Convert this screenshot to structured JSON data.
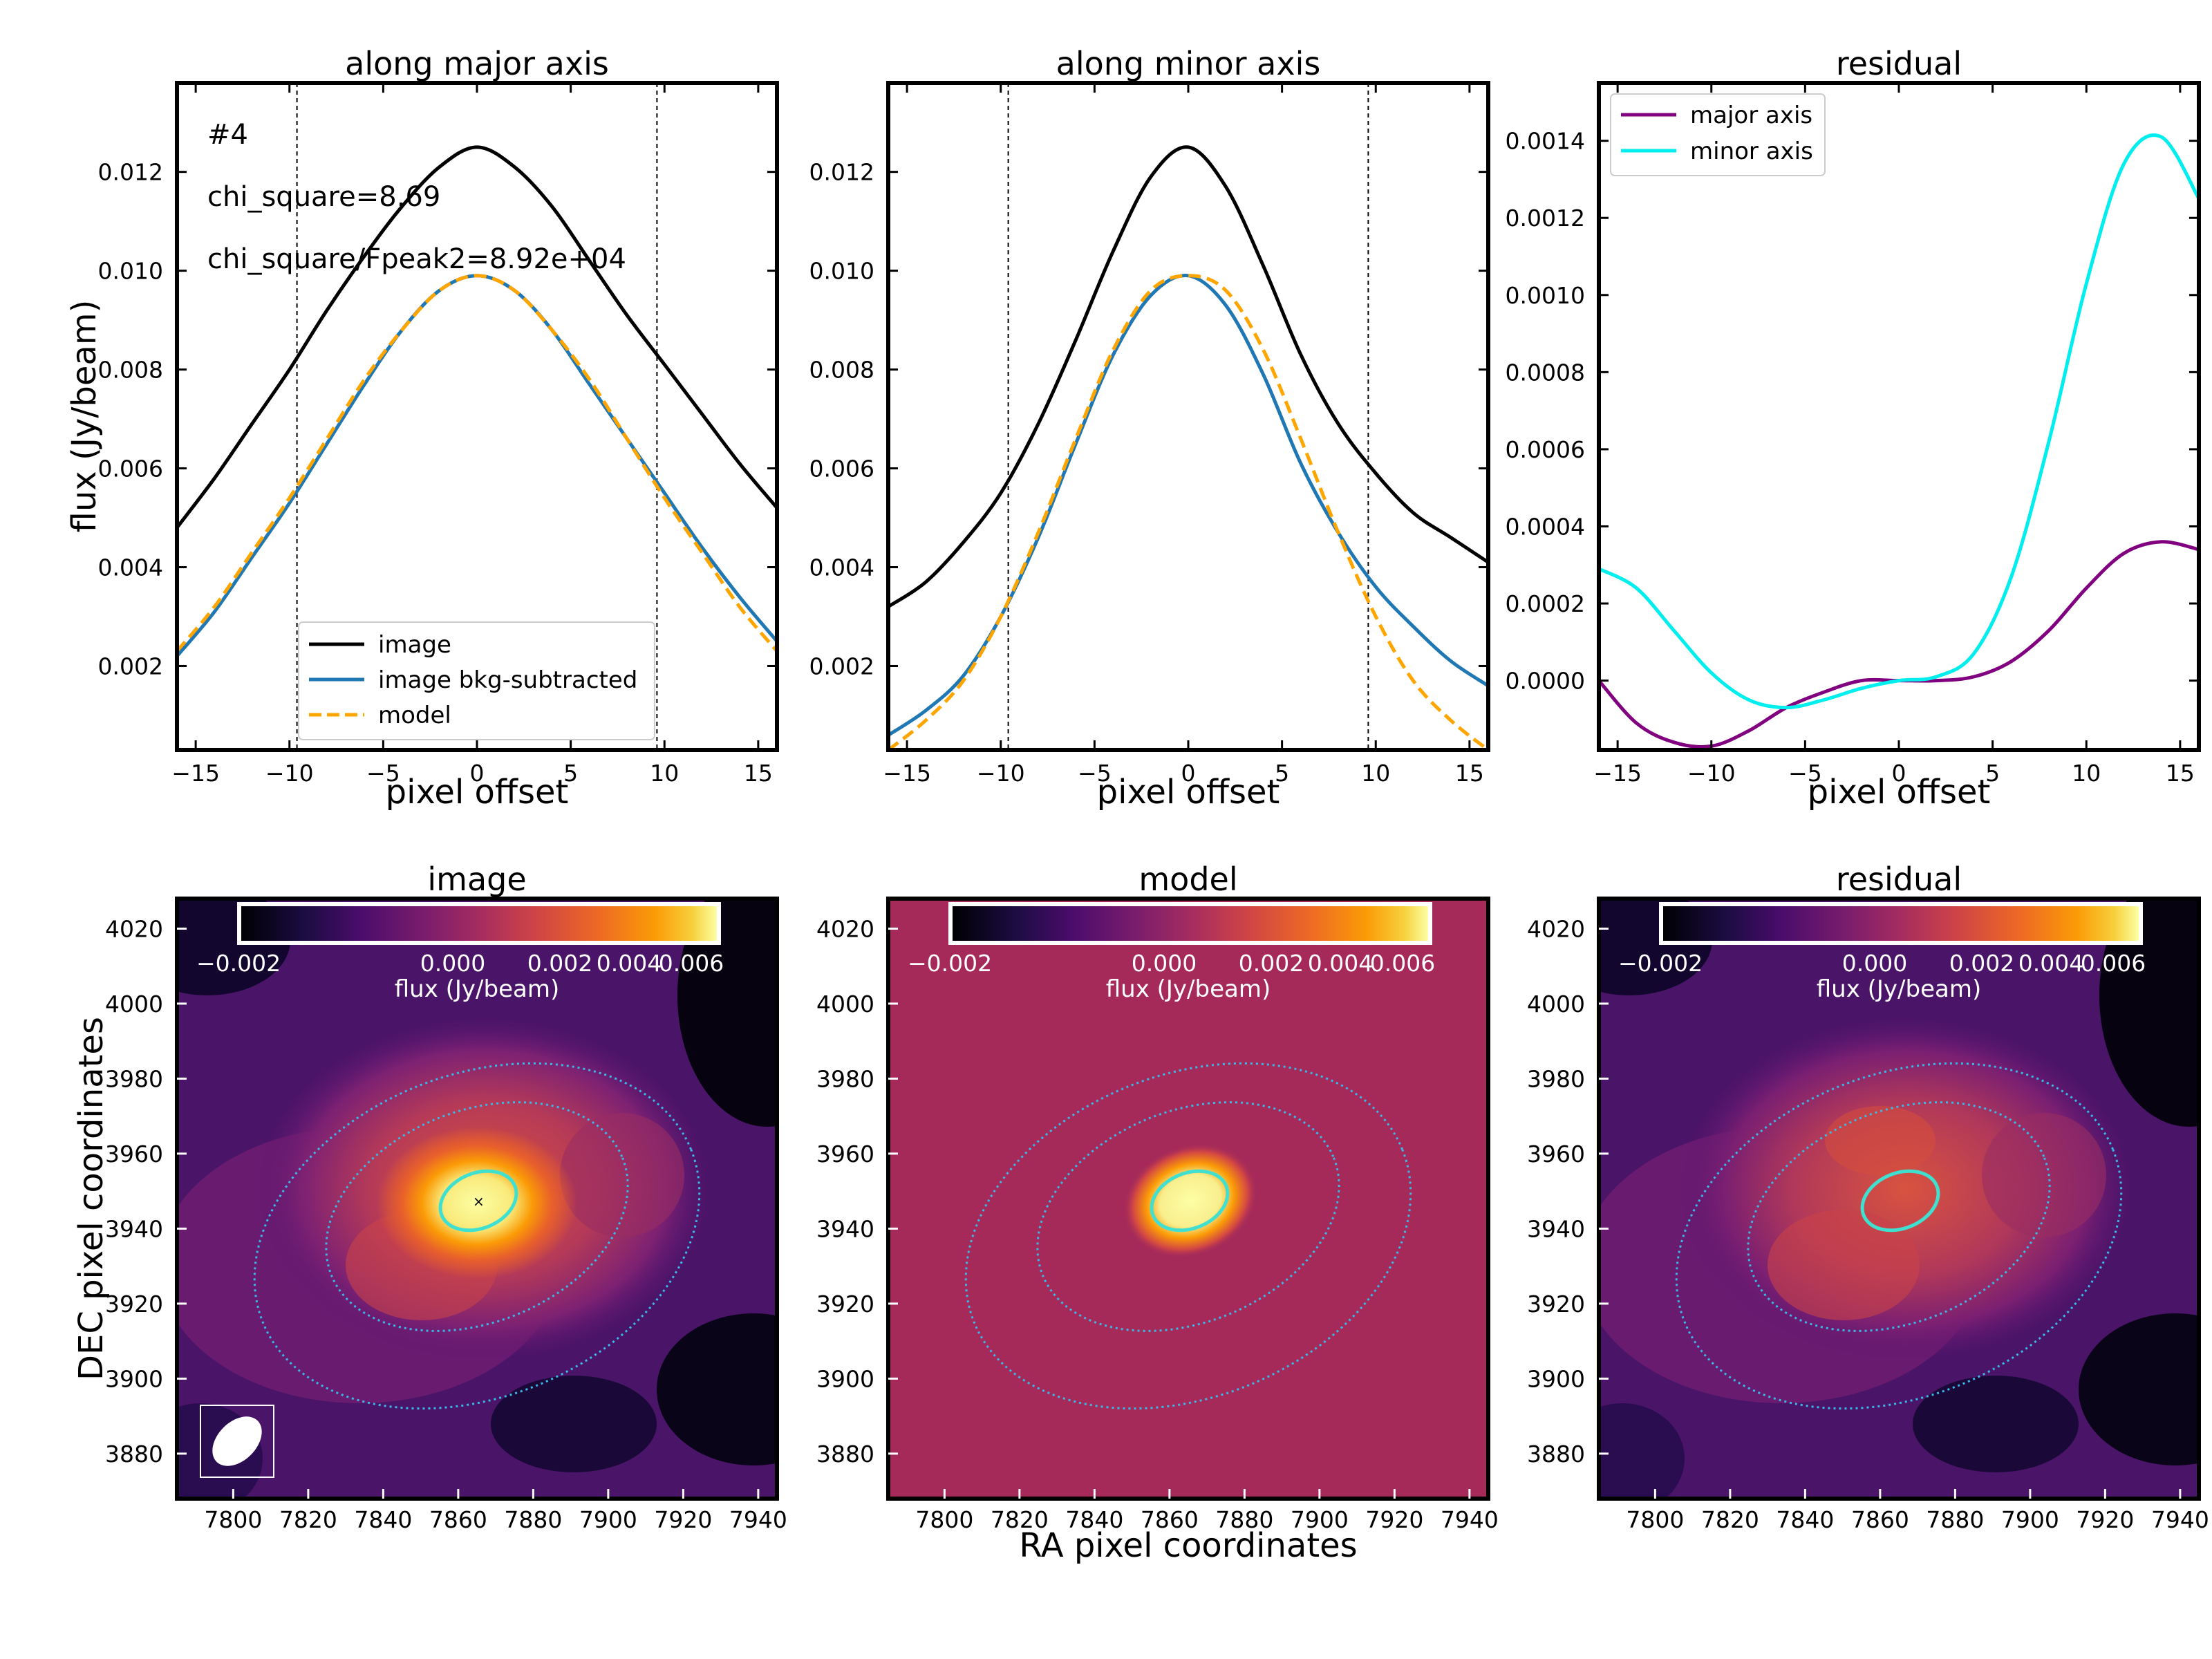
{
  "figure": {
    "top_row_xlabel": "pixel offset",
    "top_row_ylabel": "flux (Jy/beam)",
    "bottom_row_xlabel": "RA pixel coordinates",
    "bottom_row_ylabel": "DEC pixel coordinates"
  },
  "chart_data": [
    {
      "type": "line",
      "title": "along major axis",
      "xlabel": "pixel offset",
      "ylabel": "flux (Jy/beam)",
      "xlim": [
        -16,
        16
      ],
      "ylim": [
        0.0003,
        0.0138
      ],
      "xticks": [
        -15,
        -10,
        -5,
        0,
        5,
        10,
        15
      ],
      "xtick_labels": [
        "−15",
        "−10",
        "−5",
        "0",
        "5",
        "10",
        "15"
      ],
      "yticks": [
        0.002,
        0.004,
        0.006,
        0.008,
        0.01,
        0.012
      ],
      "ytick_labels": [
        "0.002",
        "0.004",
        "0.006",
        "0.008",
        "0.010",
        "0.012"
      ],
      "vlines": [
        -9.6,
        9.6
      ],
      "annotations": [
        "#4",
        "chi_square=8.69",
        "chi_square/Fpeak2=8.92e+04"
      ],
      "legend_position": "lower center",
      "x": [
        -16,
        -14,
        -12,
        -10,
        -8,
        -6,
        -4,
        -2,
        0,
        2,
        4,
        6,
        8,
        10,
        12,
        14,
        16
      ],
      "series": [
        {
          "name": "image",
          "color": "#000000",
          "style": "solid",
          "values": [
            0.0048,
            0.0058,
            0.0069,
            0.008,
            0.0092,
            0.0103,
            0.0113,
            0.0121,
            0.0125,
            0.0121,
            0.0113,
            0.0102,
            0.0091,
            0.0081,
            0.0071,
            0.0061,
            0.0052
          ]
        },
        {
          "name": "image bkg-subtracted",
          "color": "#1f77b4",
          "style": "solid",
          "values": [
            0.0022,
            0.0031,
            0.0042,
            0.0053,
            0.0065,
            0.0077,
            0.0088,
            0.0096,
            0.0099,
            0.0096,
            0.0088,
            0.0077,
            0.0066,
            0.0055,
            0.0044,
            0.0034,
            0.0025
          ]
        },
        {
          "name": "model",
          "color": "#ffa500",
          "style": "dashed",
          "values": [
            0.0023,
            0.0032,
            0.0043,
            0.0054,
            0.0066,
            0.0078,
            0.0088,
            0.0096,
            0.0099,
            0.0096,
            0.0088,
            0.0078,
            0.0066,
            0.0054,
            0.0043,
            0.0032,
            0.0023
          ]
        }
      ]
    },
    {
      "type": "line",
      "title": "along minor axis",
      "xlabel": "pixel offset",
      "ylabel": "",
      "xlim": [
        -16,
        16
      ],
      "ylim": [
        0.0003,
        0.0138
      ],
      "xticks": [
        -15,
        -10,
        -5,
        0,
        5,
        10,
        15
      ],
      "xtick_labels": [
        "−15",
        "−10",
        "−5",
        "0",
        "5",
        "10",
        "15"
      ],
      "yticks": [
        0.002,
        0.004,
        0.006,
        0.008,
        0.01,
        0.012
      ],
      "ytick_labels": [
        "0.002",
        "0.004",
        "0.006",
        "0.008",
        "0.010",
        "0.012"
      ],
      "vlines": [
        -9.6,
        9.6
      ],
      "x": [
        -16,
        -14,
        -12,
        -10,
        -8,
        -6,
        -4,
        -2,
        0,
        2,
        4,
        6,
        8,
        10,
        12,
        14,
        16
      ],
      "series": [
        {
          "name": "image",
          "color": "#000000",
          "style": "solid",
          "values": [
            0.0032,
            0.0037,
            0.0045,
            0.0055,
            0.0069,
            0.0086,
            0.0104,
            0.0119,
            0.0125,
            0.0117,
            0.0101,
            0.0083,
            0.0069,
            0.0059,
            0.0051,
            0.0046,
            0.0041
          ]
        },
        {
          "name": "image bkg-subtracted",
          "color": "#1f77b4",
          "style": "solid",
          "values": [
            0.0006,
            0.0011,
            0.0018,
            0.003,
            0.0046,
            0.0065,
            0.0083,
            0.0095,
            0.0099,
            0.0093,
            0.0079,
            0.0061,
            0.0047,
            0.0036,
            0.0028,
            0.0021,
            0.0016
          ]
        },
        {
          "name": "model",
          "color": "#ffa500",
          "style": "dashed",
          "values": [
            0.0003,
            0.0009,
            0.0017,
            0.003,
            0.0047,
            0.0066,
            0.0084,
            0.0096,
            0.0099,
            0.0096,
            0.0084,
            0.0066,
            0.0047,
            0.003,
            0.0017,
            0.0009,
            0.0003
          ]
        }
      ]
    },
    {
      "type": "line",
      "title": "residual",
      "xlabel": "pixel offset",
      "ylabel": "",
      "xlim": [
        -16,
        16
      ],
      "ylim": [
        -0.00018,
        0.00155
      ],
      "xticks": [
        -15,
        -10,
        -5,
        0,
        5,
        10,
        15
      ],
      "xtick_labels": [
        "−15",
        "−10",
        "−5",
        "0",
        "5",
        "10",
        "15"
      ],
      "yticks": [
        0.0,
        0.0002,
        0.0004,
        0.0006,
        0.0008,
        0.001,
        0.0012,
        0.0014
      ],
      "ytick_labels": [
        "0.0000",
        "0.0002",
        "0.0004",
        "0.0006",
        "0.0008",
        "0.0010",
        "0.0012",
        "0.0014"
      ],
      "legend_position": "upper left",
      "x": [
        -16,
        -14,
        -12,
        -10,
        -8,
        -6,
        -4,
        -2,
        0,
        2,
        4,
        6,
        8,
        10,
        12,
        14,
        16
      ],
      "series": [
        {
          "name": "major axis",
          "color": "#800080",
          "style": "solid",
          "values": [
            0.0,
            -0.00011,
            -0.00016,
            -0.00017,
            -0.00013,
            -7e-05,
            -3e-05,
            0.0,
            0.0,
            0.0,
            1e-05,
            5e-05,
            0.00013,
            0.00024,
            0.00033,
            0.00036,
            0.00034
          ]
        },
        {
          "name": "minor axis",
          "color": "#00eeee",
          "style": "solid",
          "values": [
            0.00029,
            0.00024,
            0.00013,
            2e-05,
            -5e-05,
            -7e-05,
            -5e-05,
            -2e-05,
            0.0,
            1e-05,
            7e-05,
            0.00027,
            0.00062,
            0.00103,
            0.00134,
            0.00141,
            0.00125
          ]
        }
      ]
    },
    {
      "type": "heatmap",
      "title": "image",
      "xlabel": "",
      "ylabel": "DEC pixel coordinates",
      "xlim": [
        7785,
        7945
      ],
      "ylim": [
        3868,
        4028
      ],
      "xticks": [
        7800,
        7820,
        7840,
        7860,
        7880,
        7900,
        7920,
        7940
      ],
      "yticks": [
        3880,
        3900,
        3920,
        3940,
        3960,
        3980,
        4000,
        4020
      ],
      "colormap": "inferno",
      "colorbar": {
        "label": "flux (Jy/beam)",
        "ticks": [
          "−0.002",
          "0.000",
          "0.002",
          "0.004",
          "0.006"
        ]
      },
      "source_center": [
        7866,
        3947
      ],
      "beam_shown": true
    },
    {
      "type": "heatmap",
      "title": "model",
      "xlabel": "RA pixel coordinates",
      "ylabel": "",
      "xlim": [
        7785,
        7945
      ],
      "ylim": [
        3868,
        4028
      ],
      "xticks": [
        7800,
        7820,
        7840,
        7860,
        7880,
        7900,
        7920,
        7940
      ],
      "yticks": [
        3880,
        3900,
        3920,
        3940,
        3960,
        3980,
        4000,
        4020
      ],
      "colormap": "inferno",
      "colorbar": {
        "label": "flux (Jy/beam)",
        "ticks": [
          "−0.002",
          "0.000",
          "0.002",
          "0.004",
          "0.006"
        ]
      },
      "background_color": "#a52a5a",
      "source_center": [
        7866,
        3947
      ]
    },
    {
      "type": "heatmap",
      "title": "residual",
      "xlabel": "",
      "ylabel": "",
      "xlim": [
        7785,
        7945
      ],
      "ylim": [
        3868,
        4028
      ],
      "xticks": [
        7800,
        7820,
        7840,
        7860,
        7880,
        7900,
        7920,
        7940
      ],
      "yticks": [
        3880,
        3900,
        3920,
        3940,
        3960,
        3980,
        4000,
        4020
      ],
      "colormap": "inferno",
      "colorbar": {
        "label": "flux (Jy/beam)",
        "ticks": [
          "−0.002",
          "0.000",
          "0.002",
          "0.004",
          "0.006"
        ]
      },
      "source_center": [
        7866,
        3947
      ]
    }
  ]
}
